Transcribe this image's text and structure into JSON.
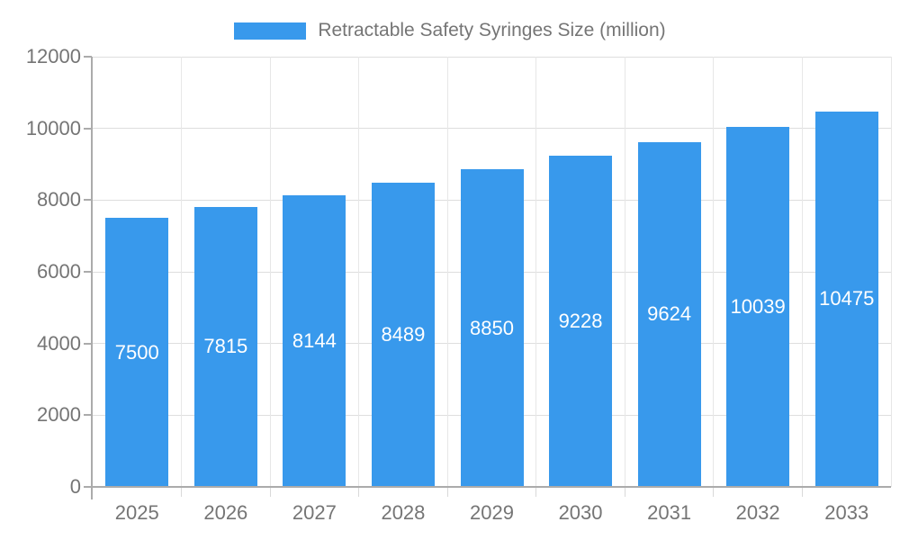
{
  "legend": {
    "label": "Retractable Safety Syringes Size (million)",
    "swatch_color": "#3899ec"
  },
  "colors": {
    "bar": "#3899ec",
    "axis": "#ababab",
    "gridline_h": "#dedede",
    "gridline_v": "#e7e7e7",
    "tick_text": "#757575",
    "bar_label_text": "#ffffff",
    "background": "#ffffff"
  },
  "chart_data": {
    "type": "bar",
    "title": "Retractable Safety Syringes Size (million)",
    "categories": [
      "2025",
      "2026",
      "2027",
      "2028",
      "2029",
      "2030",
      "2031",
      "2032",
      "2033"
    ],
    "series": [
      {
        "name": "Retractable Safety Syringes Size (million)",
        "values": [
          7500,
          7815,
          8144,
          8489,
          8850,
          9228,
          9624,
          10039,
          10475
        ]
      }
    ],
    "xlabel": "",
    "ylabel": "",
    "ylim": [
      0,
      12000
    ],
    "yticks": [
      0,
      2000,
      4000,
      6000,
      8000,
      10000,
      12000
    ],
    "grid": true,
    "legend_position": "top",
    "bar_value_labels": "inside-center-white"
  }
}
